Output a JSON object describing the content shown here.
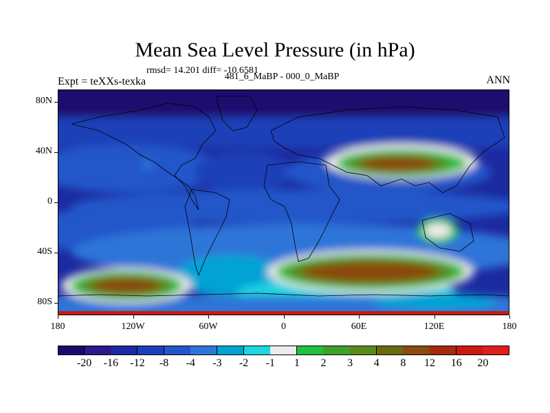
{
  "title": "Mean Sea Level Pressure (in hPa)",
  "stats": "rmsd= 14.201 diff= -10.6581",
  "left_label": "Expt = teXXs-texka",
  "center_label": "481_6_MaBP - 000_0_MaBP",
  "right_label": "ANN",
  "lat_ticks": [
    "80N",
    "40N",
    "0",
    "40S",
    "80S"
  ],
  "lat_values": [
    80,
    40,
    0,
    -40,
    -80
  ],
  "lon_ticks": [
    "180",
    "120W",
    "60W",
    "0",
    "60E",
    "120E",
    "180"
  ],
  "lon_values": [
    -180,
    -120,
    -60,
    0,
    60,
    120,
    180
  ],
  "colorbar": {
    "labels": [
      "-20",
      "-16",
      "-12",
      "-8",
      "-4",
      "-3",
      "-2",
      "-1",
      "1",
      "2",
      "3",
      "4",
      "8",
      "12",
      "16",
      "20"
    ],
    "colors": [
      "#1a0a6e",
      "#2a1a8c",
      "#1c2aa0",
      "#1f3fb8",
      "#2456c9",
      "#2f75d8",
      "#00a3d4",
      "#1ed6e0",
      "#ececec",
      "#1fbf3f",
      "#3fa02a",
      "#5a8a18",
      "#6a6a10",
      "#8a4a10",
      "#a52a10",
      "#c81a10",
      "#e01e1e"
    ]
  }
}
